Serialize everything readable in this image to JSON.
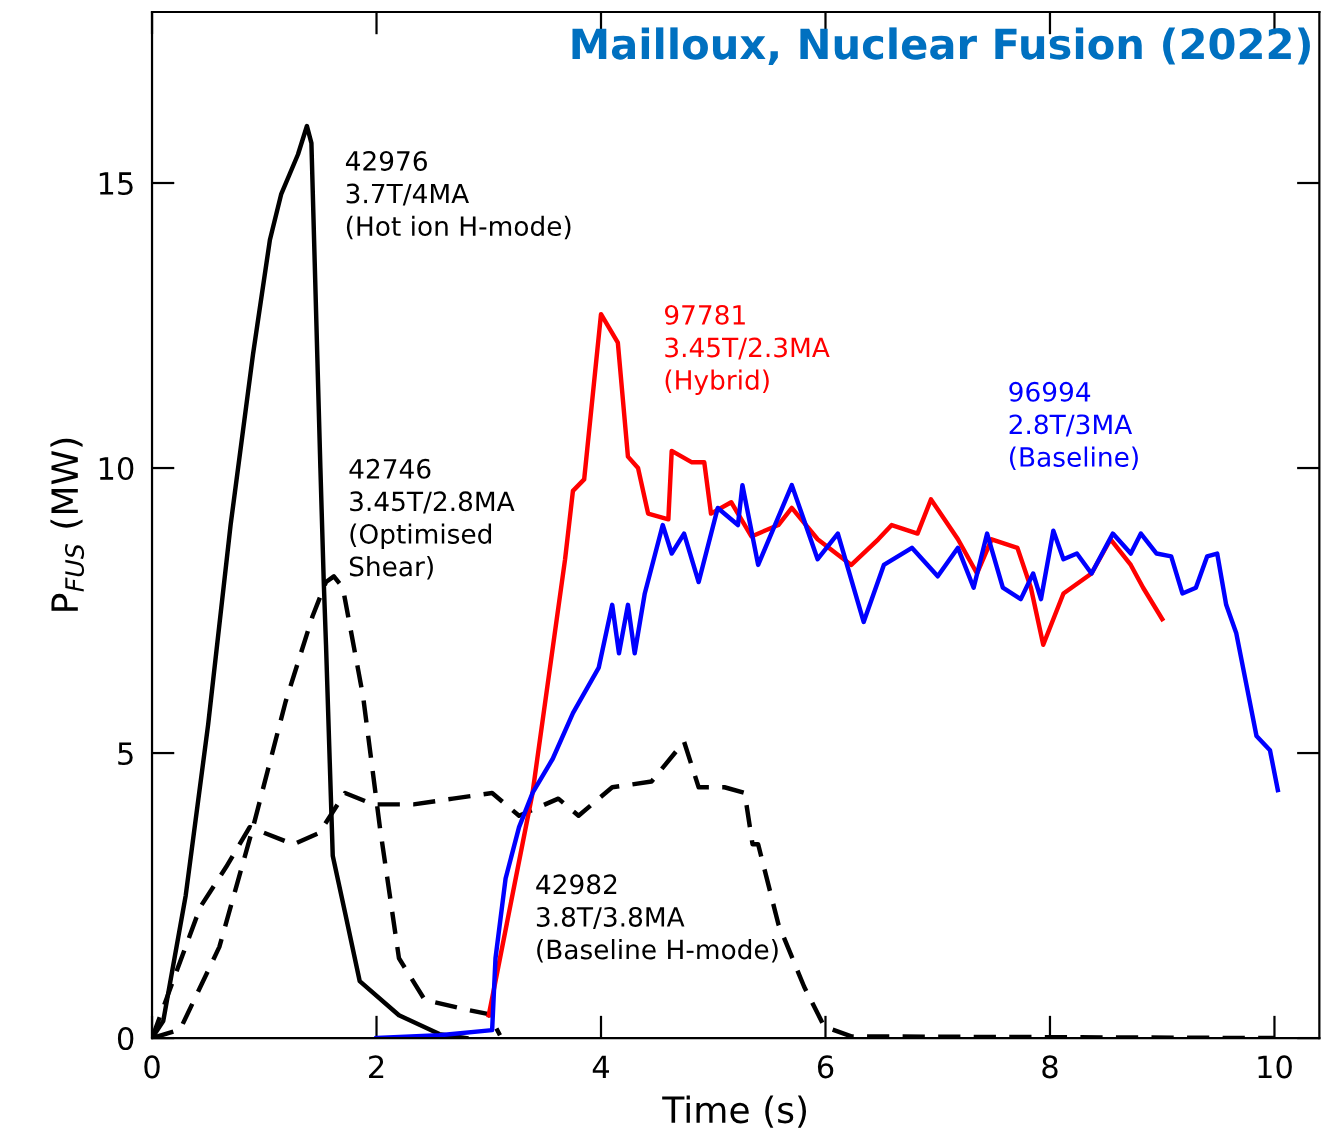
{
  "chart_data": {
    "type": "line",
    "title": "Mailloux, Nuclear Fusion (2022)",
    "xlabel": "Time (s)",
    "ylabel": "P$_{FUS}$ (MW)",
    "xlim": [
      0,
      10.4
    ],
    "ylim": [
      0,
      18
    ],
    "xticks": [
      0,
      2,
      4,
      6,
      8,
      10
    ],
    "yticks": [
      0,
      5,
      10,
      15
    ],
    "grid": false,
    "legend": false,
    "series": [
      {
        "name": "42976\n3.7T/4MA\n(Hot ion H-mode)",
        "color": "#000000",
        "line_style": "solid",
        "x": [
          0,
          0.1,
          0.3,
          0.5,
          0.7,
          0.9,
          1.05,
          1.15,
          1.3,
          1.38,
          1.42,
          1.5,
          1.53,
          1.55,
          1.61,
          1.72,
          1.85,
          2.2,
          2.56,
          2.8
        ],
        "values": [
          0,
          0.3,
          2.5,
          5.5,
          9,
          12,
          14,
          14.8,
          15.5,
          16.0,
          15.7,
          10,
          8.0,
          6.9,
          3.2,
          2.2,
          1.0,
          0.4,
          0.07,
          0
        ]
      },
      {
        "name": "42746\n3.45T/2.8MA\n(Optimised\nShear)",
        "color": "#000000",
        "line_style": "dashed",
        "x": [
          0,
          0.25,
          0.6,
          0.9,
          1.19,
          1.43,
          1.55,
          1.62,
          1.7,
          1.88,
          2.03,
          2.2,
          2.43,
          2.8,
          3.0,
          3.1
        ],
        "values": [
          0,
          0.15,
          1.6,
          3.7,
          5.9,
          7.4,
          8.0,
          8.1,
          7.9,
          6.0,
          3.7,
          1.4,
          0.67,
          0.5,
          0.42,
          0.05
        ]
      },
      {
        "name": "42982\n3.8T/3.8MA\n(Baseline H-mode)",
        "color": "#000000",
        "line_style": "dashed",
        "x": [
          0,
          0.43,
          0.66,
          0.87,
          1.26,
          1.49,
          1.72,
          1.97,
          2.33,
          2.68,
          3.03,
          3.27,
          3.62,
          3.8,
          4.1,
          4.45,
          4.74,
          4.87,
          5.1,
          5.28,
          5.35,
          5.4,
          5.58,
          5.81,
          5.99,
          6.23,
          10
        ],
        "values": [
          0,
          2.3,
          3.0,
          3.7,
          3.4,
          3.6,
          4.3,
          4.1,
          4.1,
          4.2,
          4.3,
          3.9,
          4.2,
          3.9,
          4.4,
          4.5,
          5.2,
          4.4,
          4.4,
          4.3,
          3.4,
          3.4,
          2.0,
          0.9,
          0.2,
          0.03,
          0
        ]
      },
      {
        "name": "97781\n3.45T/2.3MA\n(Hybrid)",
        "color": "#ff0000",
        "line_style": "solid",
        "x": [
          3.0,
          3.39,
          3.68,
          3.75,
          3.85,
          4.0,
          4.15,
          4.24,
          4.33,
          4.42,
          4.6,
          4.63,
          4.81,
          4.92,
          4.98,
          5.16,
          5.34,
          5.58,
          5.7,
          5.93,
          6.23,
          6.47,
          6.59,
          6.82,
          6.94,
          7.18,
          7.35,
          7.48,
          7.71,
          7.83,
          7.94,
          8.12,
          8.37,
          8.54,
          8.72,
          8.83,
          9.0
        ],
        "values": [
          0.4,
          4.3,
          8.4,
          9.6,
          9.8,
          12.7,
          12.2,
          10.2,
          10.0,
          9.2,
          9.1,
          10.3,
          10.1,
          10.1,
          9.2,
          9.4,
          8.8,
          9.0,
          9.3,
          8.75,
          8.3,
          8.75,
          9.0,
          8.85,
          9.45,
          8.75,
          8.15,
          8.75,
          8.6,
          7.9,
          6.9,
          7.8,
          8.15,
          8.75,
          8.3,
          7.9,
          7.35
        ]
      },
      {
        "name": "96994\n2.8T/3MA\n(Baseline)",
        "color": "#0000ff",
        "line_style": "solid",
        "x": [
          2.0,
          2.56,
          3.03,
          3.06,
          3.15,
          3.27,
          3.39,
          3.57,
          3.75,
          3.98,
          4.1,
          4.16,
          4.24,
          4.3,
          4.39,
          4.55,
          4.63,
          4.74,
          4.87,
          5.04,
          5.22,
          5.26,
          5.4,
          5.7,
          5.93,
          6.11,
          6.34,
          6.52,
          6.77,
          7.0,
          7.18,
          7.32,
          7.44,
          7.58,
          7.74,
          7.85,
          7.92,
          8.03,
          8.12,
          8.24,
          8.37,
          8.56,
          8.72,
          8.81,
          8.95,
          9.08,
          9.18,
          9.3,
          9.4,
          9.49,
          9.57,
          9.66,
          9.75,
          9.84,
          9.96,
          10.03
        ],
        "values": [
          0,
          0.05,
          0.14,
          1.4,
          2.8,
          3.7,
          4.3,
          4.9,
          5.7,
          6.5,
          7.6,
          6.75,
          7.6,
          6.75,
          7.8,
          9.0,
          8.5,
          8.85,
          8.0,
          9.3,
          9.0,
          9.7,
          8.3,
          9.7,
          8.4,
          8.85,
          7.3,
          8.3,
          8.6,
          8.1,
          8.6,
          7.9,
          8.85,
          7.9,
          7.7,
          8.15,
          7.7,
          8.9,
          8.4,
          8.5,
          8.15,
          8.85,
          8.5,
          8.85,
          8.5,
          8.45,
          7.8,
          7.9,
          8.45,
          8.5,
          7.6,
          7.1,
          6.2,
          5.3,
          5.05,
          4.35
        ]
      }
    ]
  }
}
